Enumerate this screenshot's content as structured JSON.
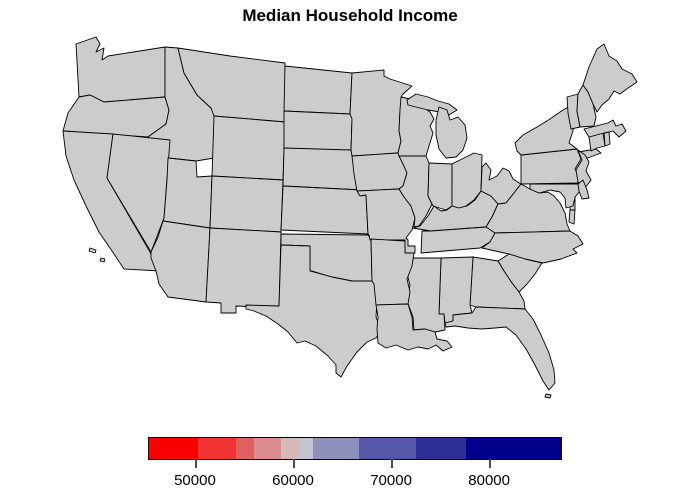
{
  "title": "Median Household Income",
  "legend": {
    "segments": [
      {
        "color": "#fb0000",
        "to": 11.9
      },
      {
        "color": "#f23333",
        "to": 21.1
      },
      {
        "color": "#e06060",
        "to": 25.5
      },
      {
        "color": "#dd8d8d",
        "to": 32.0
      },
      {
        "color": "#d8b8b8",
        "to": 36.4
      },
      {
        "color": "#c3c3d2",
        "to": 39.8
      },
      {
        "color": "#8f90bc",
        "to": 51.0
      },
      {
        "color": "#5558a8",
        "to": 64.8
      },
      {
        "color": "#2d2f96",
        "to": 76.9
      },
      {
        "color": "#00008b",
        "to": 100
      }
    ],
    "ticks": [
      {
        "label": "50000",
        "pos": 11.4
      },
      {
        "label": "60000",
        "pos": 35.2
      },
      {
        "label": "70000",
        "pos": 59.0
      },
      {
        "label": "80000",
        "pos": 82.8
      }
    ]
  },
  "chart_data": {
    "type": "choropleth",
    "title": "Median Household Income",
    "region": "United States (lower 48)",
    "legend_ticks": [
      50000,
      60000,
      70000,
      80000
    ],
    "scale_range": [
      45000,
      87000
    ],
    "palette": "red (low) to navy blue (high) diverging"
  },
  "map": {
    "states": [
      {
        "id": "WA",
        "name": "Washington",
        "color": "#31329a"
      },
      {
        "id": "OR",
        "name": "Oregon",
        "color": "#8b8cba"
      },
      {
        "id": "CA",
        "name": "California",
        "color": "#2b2d94"
      },
      {
        "id": "NV",
        "name": "Nevada",
        "color": "#dcc5c5"
      },
      {
        "id": "ID",
        "name": "Idaho",
        "color": "#e85c5c"
      },
      {
        "id": "MT",
        "name": "Montana",
        "color": "#e85c5c"
      },
      {
        "id": "WY",
        "name": "Wyoming",
        "color": "#7f82b5"
      },
      {
        "id": "UT",
        "name": "Utah",
        "color": "#5153a4"
      },
      {
        "id": "CO",
        "name": "Colorado",
        "color": "#31329a"
      },
      {
        "id": "AZ",
        "name": "Arizona",
        "color": "#dcc5c5"
      },
      {
        "id": "NM",
        "name": "New Mexico",
        "color": "#fc0a0a"
      },
      {
        "id": "ND",
        "name": "North Dakota",
        "color": "#7f82b5"
      },
      {
        "id": "SD",
        "name": "South Dakota",
        "color": "#df8482"
      },
      {
        "id": "NE",
        "name": "Nebraska",
        "color": "#c5c5d7"
      },
      {
        "id": "KS",
        "name": "Kansas",
        "color": "#d8bebe"
      },
      {
        "id": "OK",
        "name": "Oklahoma",
        "color": "#f62b2b"
      },
      {
        "id": "TX",
        "name": "Texas",
        "color": "#c3c3d5"
      },
      {
        "id": "MN",
        "name": "Minnesota",
        "color": "#5153a4"
      },
      {
        "id": "IA",
        "name": "Iowa",
        "color": "#dbc4c4"
      },
      {
        "id": "MO",
        "name": "Missouri",
        "color": "#e35653"
      },
      {
        "id": "WI",
        "name": "Wisconsin",
        "color": "#c5c5d7"
      },
      {
        "id": "IL",
        "name": "Illinois",
        "color": "#8b8cba"
      },
      {
        "id": "MI",
        "name": "Michigan",
        "color": "#df8482"
      },
      {
        "id": "IN",
        "name": "Indiana",
        "color": "#df7f7f"
      },
      {
        "id": "OH",
        "name": "Ohio",
        "color": "#e18f8f"
      },
      {
        "id": "KY",
        "name": "Kentucky",
        "color": "#f62020"
      },
      {
        "id": "TN",
        "name": "Tennessee",
        "color": "#e94646"
      },
      {
        "id": "AR",
        "name": "Arkansas",
        "color": "#fc0808"
      },
      {
        "id": "LA",
        "name": "Louisiana",
        "color": "#fc0404"
      },
      {
        "id": "MS",
        "name": "Mississippi",
        "color": "#fc0404"
      },
      {
        "id": "AL",
        "name": "Alabama",
        "color": "#f02a2a"
      },
      {
        "id": "GA",
        "name": "Georgia",
        "color": "#d4bcc2"
      },
      {
        "id": "FL",
        "name": "Florida",
        "color": "#e56767"
      },
      {
        "id": "SC",
        "name": "South Carolina",
        "color": "#e94242"
      },
      {
        "id": "NC",
        "name": "North Carolina",
        "color": "#e56161"
      },
      {
        "id": "VA",
        "name": "Virginia",
        "color": "#33349b"
      },
      {
        "id": "WV",
        "name": "West Virginia",
        "color": "#fc0a0a"
      },
      {
        "id": "MD",
        "name": "Maryland",
        "color": "#000080"
      },
      {
        "id": "DE",
        "name": "Delaware",
        "color": "#050586"
      },
      {
        "id": "NJ",
        "name": "New Jersey",
        "color": "#0f1088"
      },
      {
        "id": "PA",
        "name": "Pennsylvania",
        "color": "#c5c5d7"
      },
      {
        "id": "NY",
        "name": "New York",
        "color": "#6a6caf"
      },
      {
        "id": "CT",
        "name": "Connecticut",
        "color": "#000080"
      },
      {
        "id": "RI",
        "name": "Rhode Island",
        "color": "#000080"
      },
      {
        "id": "MA",
        "name": "Massachusetts",
        "color": "#000080"
      },
      {
        "id": "VT",
        "name": "Vermont",
        "color": "#a5a6c9"
      },
      {
        "id": "NH",
        "name": "New Hampshire",
        "color": "#5a5cab"
      },
      {
        "id": "ME",
        "name": "Maine",
        "color": "#e58f8f"
      }
    ]
  }
}
